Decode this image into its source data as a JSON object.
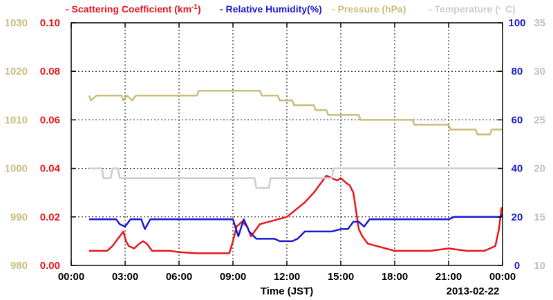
{
  "chart_data": {
    "type": "line",
    "title": "",
    "xlabel": "Time (JST)",
    "date_label": "2013-02-22",
    "legend": {
      "placement": "top",
      "entries": [
        {
          "text": "- Scattering Coefficient (km",
          "sup": "-1",
          "tail": ")",
          "color": "#e8141c"
        },
        {
          "text": "- Relative Humidity(%)",
          "color": "#1a1ad0"
        },
        {
          "text": "- Pressure (hPa)",
          "color": "#c8bd7c"
        },
        {
          "text": "- Temperature (",
          "sup": "。",
          "tail": "C)",
          "color": "#cccccc"
        }
      ]
    },
    "x_ticks": [
      "00:00",
      "03:00",
      "06:00",
      "09:00",
      "12:00",
      "15:00",
      "18:00",
      "21:00",
      "00:00"
    ],
    "x_range": [
      0,
      24
    ],
    "grid": true,
    "axes": {
      "pressure": {
        "ticks": [
          "980",
          "990",
          "1000",
          "1010",
          "1020",
          "1030"
        ],
        "range": [
          980,
          1030
        ],
        "color": "#c8bd7c"
      },
      "scattering": {
        "ticks": [
          "0.00",
          "0.02",
          "0.04",
          "0.06",
          "0.08",
          "0.10"
        ],
        "range": [
          0,
          0.1
        ],
        "color": "#e8141c"
      },
      "humidity": {
        "ticks": [
          "0",
          "20",
          "40",
          "60",
          "80",
          "100"
        ],
        "range": [
          0,
          100
        ],
        "color": "#1a1ad0"
      },
      "temperature": {
        "ticks": [
          "10",
          "15",
          "20",
          "25",
          "30",
          "35"
        ],
        "range": [
          10,
          35
        ],
        "color": "#c0c0c0"
      }
    },
    "series": [
      {
        "name": "Scattering Coefficient",
        "axis": "scattering",
        "color": "#e8141c",
        "points": [
          [
            1.0,
            0.006
          ],
          [
            1.5,
            0.006
          ],
          [
            2.0,
            0.006
          ],
          [
            2.3,
            0.008
          ],
          [
            2.5,
            0.01
          ],
          [
            2.7,
            0.012
          ],
          [
            2.9,
            0.014
          ],
          [
            3.05,
            0.01
          ],
          [
            3.2,
            0.008
          ],
          [
            3.5,
            0.007
          ],
          [
            3.8,
            0.009
          ],
          [
            4.0,
            0.01
          ],
          [
            4.2,
            0.009
          ],
          [
            4.5,
            0.006
          ],
          [
            5.0,
            0.006
          ],
          [
            5.5,
            0.006
          ],
          [
            6.0,
            0.0055
          ],
          [
            7.0,
            0.005
          ],
          [
            8.0,
            0.005
          ],
          [
            8.8,
            0.005
          ],
          [
            9.0,
            0.01
          ],
          [
            9.2,
            0.016
          ],
          [
            9.5,
            0.018
          ],
          [
            9.8,
            0.016
          ],
          [
            10.0,
            0.012
          ],
          [
            10.5,
            0.017
          ],
          [
            11.0,
            0.018
          ],
          [
            11.5,
            0.019
          ],
          [
            12.0,
            0.02
          ],
          [
            12.5,
            0.023
          ],
          [
            13.0,
            0.026
          ],
          [
            13.5,
            0.03
          ],
          [
            14.0,
            0.035
          ],
          [
            14.2,
            0.037
          ],
          [
            14.5,
            0.036
          ],
          [
            14.8,
            0.035
          ],
          [
            15.0,
            0.036
          ],
          [
            15.3,
            0.034
          ],
          [
            15.5,
            0.033
          ],
          [
            15.7,
            0.03
          ],
          [
            15.9,
            0.02
          ],
          [
            16.0,
            0.015
          ],
          [
            16.2,
            0.012
          ],
          [
            16.5,
            0.009
          ],
          [
            17.0,
            0.008
          ],
          [
            17.5,
            0.007
          ],
          [
            18.0,
            0.006
          ],
          [
            19.0,
            0.006
          ],
          [
            20.0,
            0.006
          ],
          [
            21.0,
            0.007
          ],
          [
            22.0,
            0.006
          ],
          [
            23.0,
            0.006
          ],
          [
            23.6,
            0.008
          ],
          [
            23.8,
            0.015
          ],
          [
            23.95,
            0.024
          ]
        ]
      },
      {
        "name": "Relative Humidity",
        "axis": "humidity",
        "color": "#1a1ad0",
        "points": [
          [
            1.0,
            19
          ],
          [
            2.5,
            19
          ],
          [
            2.7,
            17
          ],
          [
            3.0,
            16
          ],
          [
            3.3,
            19
          ],
          [
            3.9,
            19
          ],
          [
            4.1,
            15
          ],
          [
            4.4,
            19
          ],
          [
            9.0,
            19
          ],
          [
            9.3,
            12
          ],
          [
            9.6,
            19
          ],
          [
            9.9,
            14
          ],
          [
            10.3,
            11
          ],
          [
            11.3,
            11
          ],
          [
            11.6,
            10
          ],
          [
            12.3,
            10
          ],
          [
            12.6,
            11
          ],
          [
            13.0,
            14
          ],
          [
            14.5,
            14
          ],
          [
            15.0,
            15
          ],
          [
            15.4,
            15
          ],
          [
            15.7,
            18
          ],
          [
            16.0,
            18
          ],
          [
            16.3,
            16
          ],
          [
            16.6,
            19
          ],
          [
            21.0,
            19
          ],
          [
            21.3,
            20
          ],
          [
            23.9,
            20
          ],
          [
            24.0,
            21
          ]
        ]
      },
      {
        "name": "Pressure",
        "axis": "pressure",
        "color": "#c8bd7c",
        "points": [
          [
            1.0,
            1015
          ],
          [
            1.1,
            1014
          ],
          [
            1.4,
            1015
          ],
          [
            2.8,
            1015
          ],
          [
            2.9,
            1014
          ],
          [
            3.1,
            1015
          ],
          [
            3.4,
            1014
          ],
          [
            3.6,
            1015
          ],
          [
            7.0,
            1015
          ],
          [
            7.1,
            1016
          ],
          [
            10.5,
            1016
          ],
          [
            10.6,
            1015
          ],
          [
            11.5,
            1015
          ],
          [
            11.6,
            1014
          ],
          [
            12.3,
            1014
          ],
          [
            12.4,
            1013
          ],
          [
            13.5,
            1013
          ],
          [
            13.6,
            1012
          ],
          [
            14.2,
            1012
          ],
          [
            14.3,
            1011
          ],
          [
            16.0,
            1011
          ],
          [
            16.1,
            1010
          ],
          [
            19.0,
            1010
          ],
          [
            19.1,
            1009
          ],
          [
            21.0,
            1009
          ],
          [
            21.1,
            1008
          ],
          [
            22.5,
            1008
          ],
          [
            22.6,
            1007
          ],
          [
            23.3,
            1007
          ],
          [
            23.4,
            1008
          ],
          [
            24.0,
            1008
          ]
        ]
      },
      {
        "name": "Temperature",
        "axis": "temperature",
        "color": "#cccccc",
        "points": [
          [
            1.0,
            20
          ],
          [
            1.7,
            20
          ],
          [
            1.8,
            19
          ],
          [
            2.2,
            19
          ],
          [
            2.3,
            20
          ],
          [
            2.6,
            20
          ],
          [
            2.7,
            19
          ],
          [
            10.2,
            19
          ],
          [
            10.3,
            18
          ],
          [
            11.0,
            18
          ],
          [
            11.1,
            19
          ],
          [
            14.5,
            19
          ],
          [
            14.6,
            20
          ],
          [
            24.0,
            20
          ]
        ]
      }
    ]
  }
}
